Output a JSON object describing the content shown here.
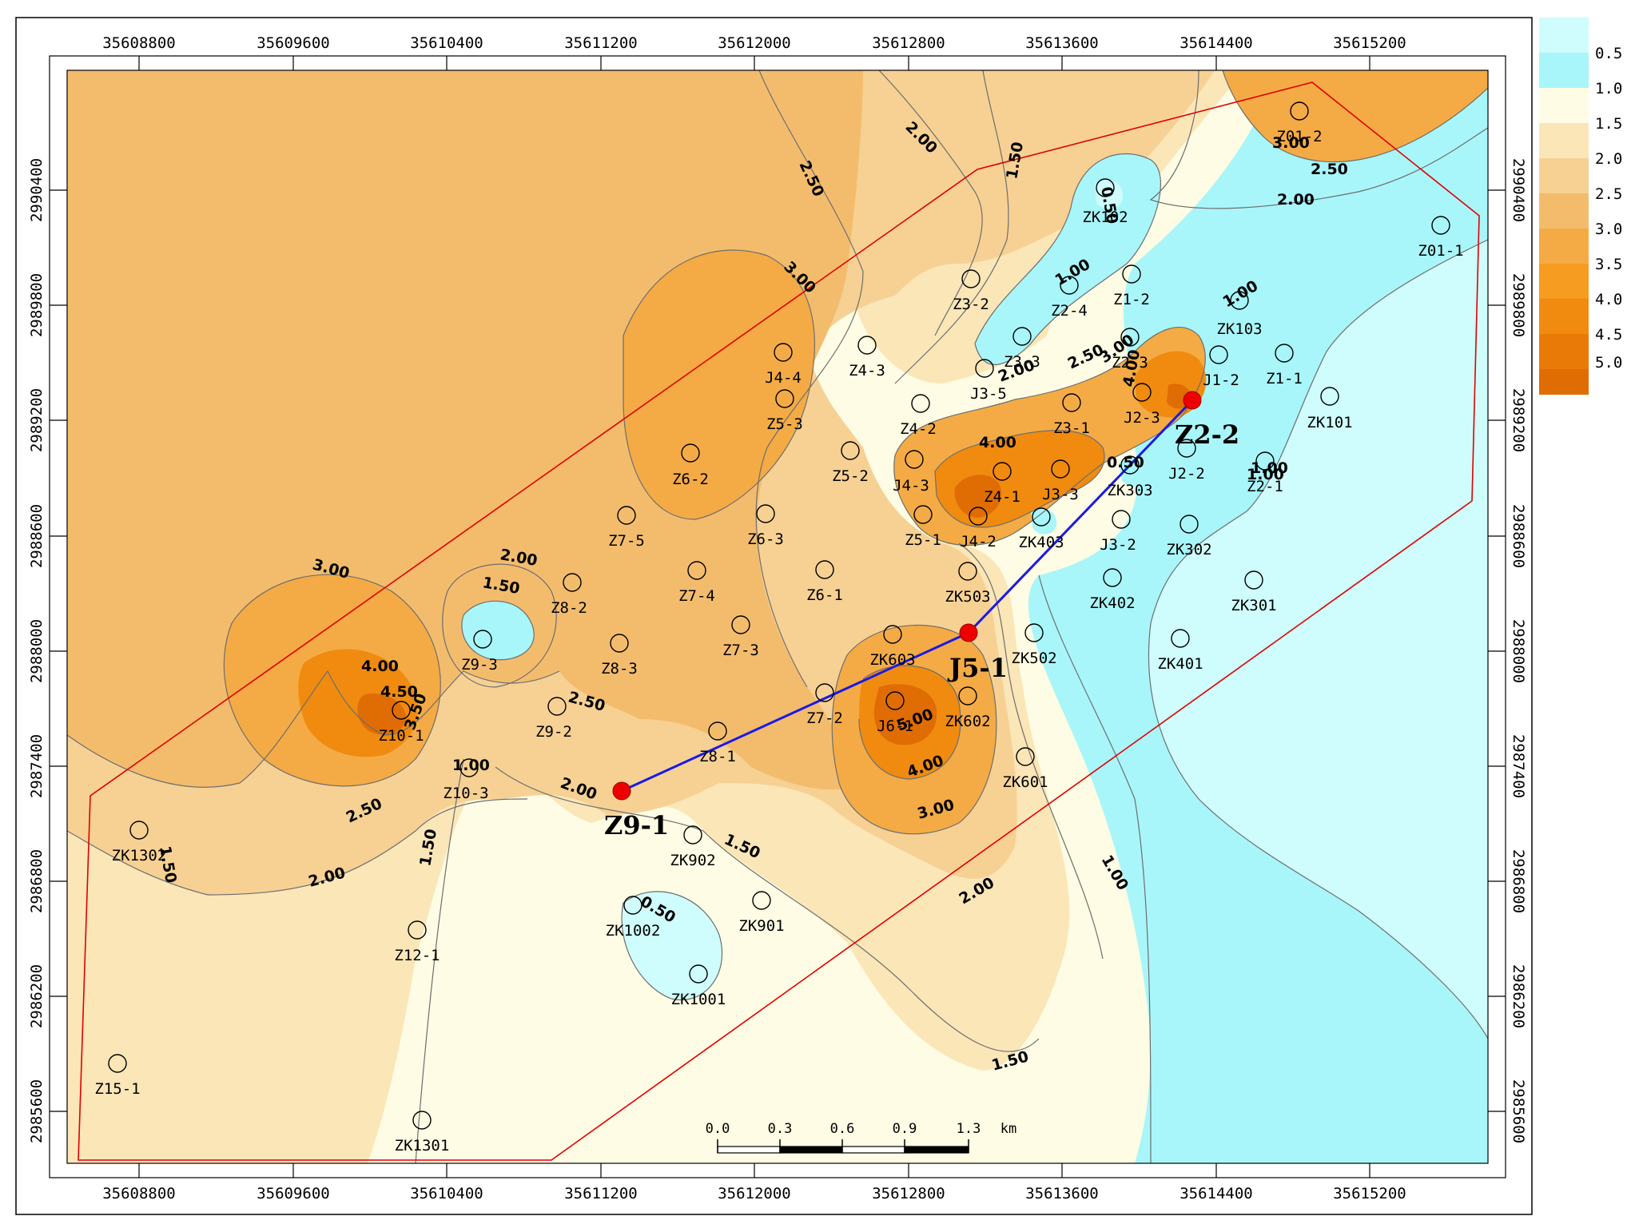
{
  "colors": {
    "lt05": "#cffcfc",
    "c05_10": "#a8f6fa",
    "c10_15": "#fefce4",
    "c15_20": "#fbe6b8",
    "c20_25": "#f6d193",
    "c25_30": "#f3bc6d",
    "c30_35": "#f4ab45",
    "c35_40": "#f69c20",
    "c40_45": "#f08b10",
    "c45_50": "#ea7a08",
    "c50p": "#e06c04",
    "contour": "#6e6e6e",
    "boundary": "#e00000",
    "profile": "#1a1ae6",
    "key_point": "#ee0000"
  },
  "axes": {
    "x_ticks": [
      "35608800",
      "35609600",
      "35610400",
      "35611200",
      "35612000",
      "35612800",
      "35613600",
      "35614400",
      "35615200"
    ],
    "y_ticks": [
      "2990400",
      "2989800",
      "2989200",
      "2988600",
      "2988000",
      "2987400",
      "2986800",
      "2986200",
      "2985600"
    ]
  },
  "legend": {
    "labels": [
      "0.5",
      "1.0",
      "1.5",
      "2.0",
      "2.5",
      "3.0",
      "3.5",
      "4.0",
      "4.5",
      "5.0"
    ]
  },
  "scale_bar": {
    "labels": [
      "0.0",
      "0.3",
      "0.6",
      "0.9",
      "1.3"
    ],
    "unit": "km"
  },
  "contour_labels": [
    {
      "id": "c1",
      "text": "2.50"
    },
    {
      "id": "c2",
      "text": "2.00"
    },
    {
      "id": "c3",
      "text": "3.00"
    },
    {
      "id": "c4",
      "text": "1.50"
    },
    {
      "id": "c5",
      "text": "3.00"
    },
    {
      "id": "c6",
      "text": "2.50"
    },
    {
      "id": "c7",
      "text": "2.00"
    },
    {
      "id": "c8",
      "text": "0.50"
    },
    {
      "id": "c9",
      "text": "1.00"
    },
    {
      "id": "c10",
      "text": "2.50"
    },
    {
      "id": "c11",
      "text": "2.00"
    },
    {
      "id": "c12",
      "text": "3.00"
    },
    {
      "id": "c13",
      "text": "4.00"
    },
    {
      "id": "c14",
      "text": "4.00"
    },
    {
      "id": "c15",
      "text": "1.00"
    },
    {
      "id": "c16",
      "text": "0.50"
    },
    {
      "id": "c17",
      "text": "1.00"
    },
    {
      "id": "c18",
      "text": "3.00"
    },
    {
      "id": "c19",
      "text": "2.00"
    },
    {
      "id": "c20",
      "text": "1.50"
    },
    {
      "id": "c21",
      "text": "4.00"
    },
    {
      "id": "c22",
      "text": "4.50"
    },
    {
      "id": "c23",
      "text": "3.50"
    },
    {
      "id": "c24",
      "text": "2.50"
    },
    {
      "id": "c25",
      "text": "2.00"
    },
    {
      "id": "c26",
      "text": "1.00"
    },
    {
      "id": "c27",
      "text": "2.50"
    },
    {
      "id": "c28",
      "text": "2.00"
    },
    {
      "id": "c29",
      "text": "1.50"
    },
    {
      "id": "c30",
      "text": "1.50"
    },
    {
      "id": "c31",
      "text": "1.50"
    },
    {
      "id": "c32",
      "text": "0.50"
    },
    {
      "id": "c33",
      "text": "5.00"
    },
    {
      "id": "c34",
      "text": "4.00"
    },
    {
      "id": "c35",
      "text": "3.00"
    },
    {
      "id": "c36",
      "text": "2.00"
    },
    {
      "id": "c37",
      "text": "1.00"
    },
    {
      "id": "c38",
      "text": "1.50"
    },
    {
      "id": "c39",
      "text": "1.00"
    }
  ],
  "wells": [
    {
      "name": "Z01-2"
    },
    {
      "name": "Z01-1"
    },
    {
      "name": "ZK102"
    },
    {
      "name": "Z3-2"
    },
    {
      "name": "Z2-4"
    },
    {
      "name": "Z1-2"
    },
    {
      "name": "ZK103"
    },
    {
      "name": "Z3-3"
    },
    {
      "name": "Z2-3"
    },
    {
      "name": "J1-2"
    },
    {
      "name": "Z1-1"
    },
    {
      "name": "J3-5"
    },
    {
      "name": "ZK101"
    },
    {
      "name": "J4-4"
    },
    {
      "name": "Z4-3"
    },
    {
      "name": "Z5-3"
    },
    {
      "name": "Z4-2"
    },
    {
      "name": "Z3-1"
    },
    {
      "name": "J2-3"
    },
    {
      "name": "Z6-2"
    },
    {
      "name": "Z5-2"
    },
    {
      "name": "J4-3"
    },
    {
      "name": "Z4-1"
    },
    {
      "name": "J3-3"
    },
    {
      "name": "ZK303"
    },
    {
      "name": "J2-2"
    },
    {
      "name": "Z2-1"
    },
    {
      "name": "Z7-5"
    },
    {
      "name": "Z6-3"
    },
    {
      "name": "Z5-1"
    },
    {
      "name": "J4-2"
    },
    {
      "name": "ZK403"
    },
    {
      "name": "J3-2"
    },
    {
      "name": "ZK302"
    },
    {
      "name": "Z7-4"
    },
    {
      "name": "Z6-1"
    },
    {
      "name": "ZK503"
    },
    {
      "name": "ZK402"
    },
    {
      "name": "ZK301"
    },
    {
      "name": "Z8-2"
    },
    {
      "name": "Z9-3"
    },
    {
      "name": "Z8-3"
    },
    {
      "name": "Z7-3"
    },
    {
      "name": "ZK603"
    },
    {
      "name": "ZK502"
    },
    {
      "name": "ZK401"
    },
    {
      "name": "Z10-1"
    },
    {
      "name": "Z9-2"
    },
    {
      "name": "Z7-2"
    },
    {
      "name": "J6-1"
    },
    {
      "name": "ZK602"
    },
    {
      "name": "Z8-1"
    },
    {
      "name": "Z10-3"
    },
    {
      "name": "ZK601"
    },
    {
      "name": "ZK1302"
    },
    {
      "name": "ZK902"
    },
    {
      "name": "ZK1002"
    },
    {
      "name": "ZK901"
    },
    {
      "name": "Z12-1"
    },
    {
      "name": "ZK1001"
    },
    {
      "name": "Z15-1"
    },
    {
      "name": "ZK1301"
    }
  ],
  "key_points": [
    {
      "name": "Z9-1"
    },
    {
      "name": "J5-1"
    },
    {
      "name": "Z2-2"
    }
  ]
}
